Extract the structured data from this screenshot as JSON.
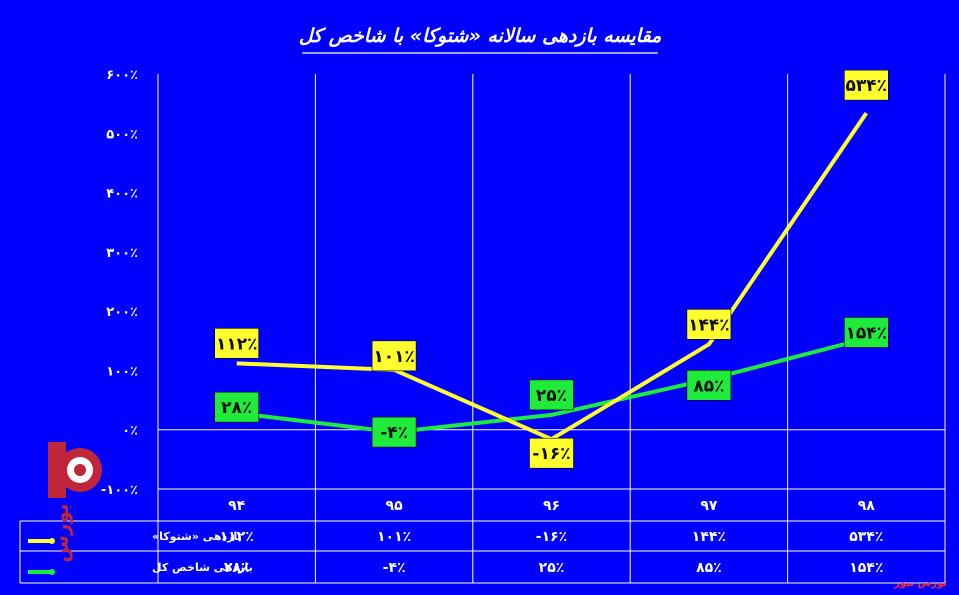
{
  "chart_data": {
    "type": "line",
    "title": "مقایسه بازدهی سالانه «شتوکا» با شاخص کل",
    "categories": [
      "۹۴",
      "۹۵",
      "۹۶",
      "۹۷",
      "۹۸"
    ],
    "ylim": [
      -100,
      600
    ],
    "yticks": [
      600,
      500,
      400,
      300,
      200,
      100,
      0,
      -100
    ],
    "ytick_labels": [
      "۶۰۰٪",
      "۵۰۰٪",
      "۴۰۰٪",
      "۳۰۰٪",
      "۲۰۰٪",
      "۱۰۰٪",
      "۰٪",
      "-۱۰۰٪"
    ],
    "grid": true,
    "legend": "data-table",
    "series": [
      {
        "name": "بازدهی «شتوکا»",
        "values": [
          112,
          101,
          -16,
          144,
          534
        ],
        "labels": [
          "۱۱۲٪",
          "۱۰۱٪",
          "-۱۶٪",
          "۱۴۴٪",
          "۵۳۴٪"
        ],
        "color": "#FFFF2E"
      },
      {
        "name": "بازدهی شاخص کل",
        "values": [
          28,
          -4,
          25,
          85,
          154
        ],
        "labels": [
          "۲۸٪",
          "-۴٪",
          "۲۵٪",
          "۸۵٪",
          "۱۵۴٪"
        ],
        "color": "#1EEB3A"
      }
    ]
  },
  "footer": {
    "credit": "بورس نیوز"
  }
}
